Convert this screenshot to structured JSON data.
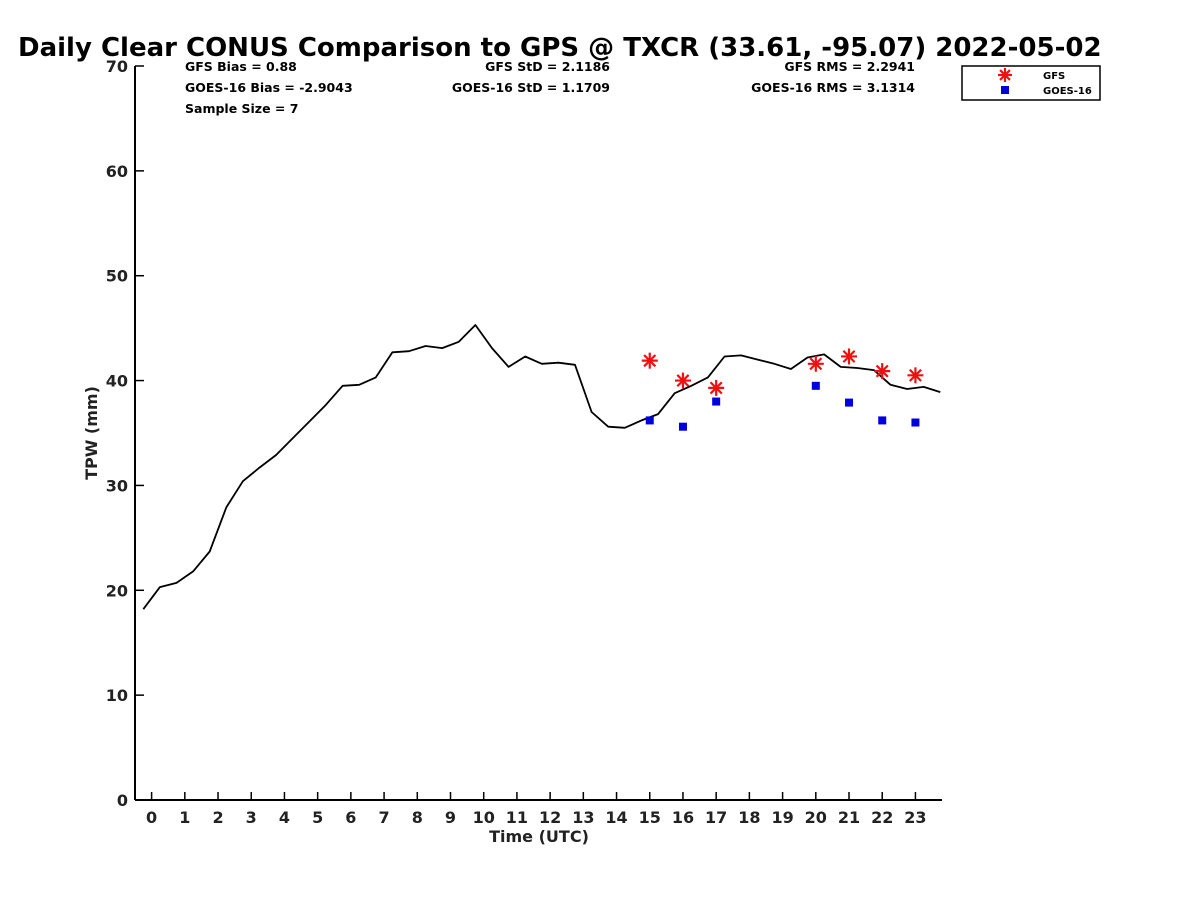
{
  "chart_data": {
    "type": "line",
    "title": "Daily Clear CONUS Comparison to GPS @ TXCR (33.61, -95.07) 2022-05-02",
    "xlabel": "Time (UTC)",
    "ylabel": "TPW (mm)",
    "xlim": [
      -0.5,
      23.8
    ],
    "ylim": [
      0,
      70
    ],
    "xticks": [
      "0",
      "1",
      "2",
      "3",
      "4",
      "5",
      "6",
      "7",
      "8",
      "9",
      "10",
      "11",
      "12",
      "13",
      "14",
      "15",
      "16",
      "17",
      "18",
      "19",
      "20",
      "21",
      "22",
      "23"
    ],
    "yticks": [
      "0",
      "10",
      "20",
      "30",
      "40",
      "50",
      "60",
      "70"
    ],
    "grid": false,
    "legend_position": "top-right",
    "stats": {
      "gfs_bias": "GFS Bias = 0.88",
      "goes_bias": "GOES-16 Bias = -2.9043",
      "sample_size": "Sample Size = 7",
      "gfs_std": "GFS StD = 2.1186",
      "goes_std": "GOES-16 StD = 1.1709",
      "gfs_rms": "GFS RMS = 2.2941",
      "goes_rms": "GOES-16 RMS = 3.1314"
    },
    "series": [
      {
        "type": "line",
        "color": "#000000",
        "x": [
          -0.25,
          0.25,
          0.75,
          1.25,
          1.75,
          2.25,
          2.75,
          3.25,
          3.75,
          4.25,
          4.75,
          5.25,
          5.75,
          6.25,
          6.75,
          7.25,
          7.75,
          8.25,
          8.75,
          9.25,
          9.75,
          10.25,
          10.75,
          11.25,
          11.75,
          12.25,
          12.75,
          13.25,
          13.75,
          14.25,
          14.75,
          15.25,
          15.75,
          16.25,
          16.75,
          17.25,
          17.75,
          18.25,
          18.75,
          19.25,
          19.75,
          20.25,
          20.75,
          21.25,
          21.75,
          22.25,
          22.75,
          23.25,
          23.75
        ],
        "y": [
          18.2,
          20.3,
          20.7,
          21.8,
          23.7,
          27.9,
          30.4,
          31.7,
          32.9,
          34.5,
          36.1,
          37.7,
          39.5,
          39.6,
          40.3,
          42.7,
          42.8,
          43.3,
          43.1,
          43.7,
          45.3,
          43.1,
          41.3,
          42.3,
          41.6,
          41.7,
          41.5,
          37.0,
          35.6,
          35.5,
          36.2,
          36.8,
          38.8,
          39.5,
          40.3,
          42.3,
          42.4,
          42.0,
          41.6,
          41.1,
          42.2,
          42.5,
          41.3,
          41.2,
          41.0,
          39.6,
          39.2,
          39.4,
          38.9
        ]
      },
      {
        "name": "GFS",
        "type": "scatter",
        "marker": "asterisk",
        "color": "#ee1111",
        "x": [
          15,
          16,
          17,
          20,
          21,
          22,
          23
        ],
        "y": [
          41.9,
          40.0,
          39.3,
          41.6,
          42.3,
          40.9,
          40.5
        ]
      },
      {
        "name": "GOES-16",
        "type": "scatter",
        "marker": "square",
        "color": "#0000dd",
        "x": [
          15,
          16,
          17,
          20,
          21,
          22,
          23
        ],
        "y": [
          36.2,
          35.6,
          38.0,
          39.5,
          37.9,
          36.2,
          36.0
        ]
      }
    ]
  }
}
